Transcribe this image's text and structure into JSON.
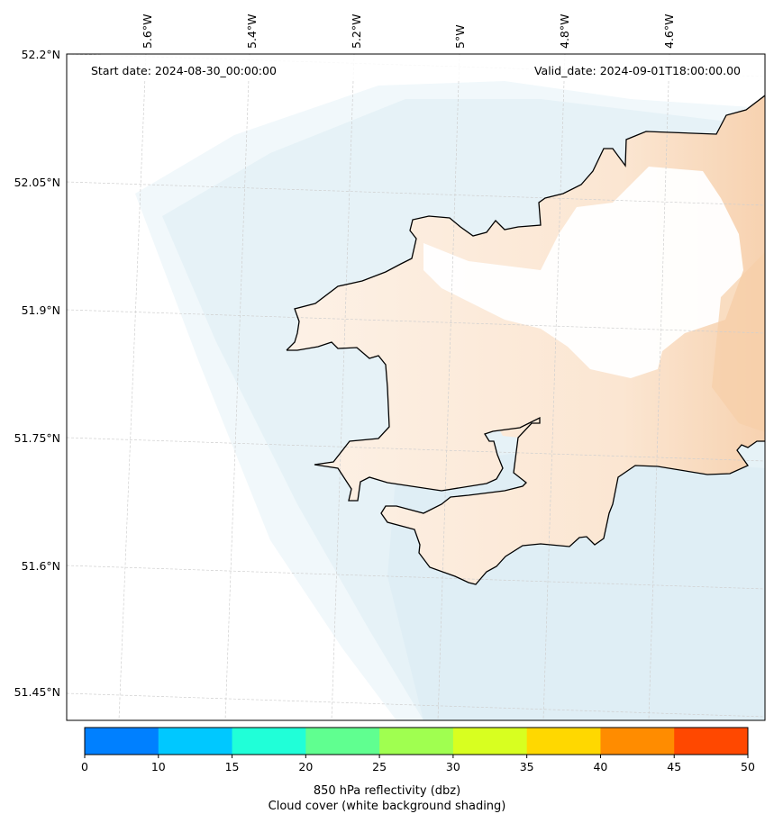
{
  "header": {
    "start_date": "Start date: 2024-08-30_00:00:00",
    "valid_date": "Valid_date: 2024-09-01T18:00:00.00"
  },
  "axes": {
    "lat_labels": [
      "52.2°N",
      "52.05°N",
      "51.9°N",
      "51.75°N",
      "51.6°N",
      "51.45°N"
    ],
    "lon_labels": [
      "5.6°W",
      "5.4°W",
      "5.2°W",
      "5°W",
      "4.8°W",
      "4.6°W"
    ]
  },
  "colorbar": {
    "ticks": [
      "0",
      "10",
      "15",
      "20",
      "25",
      "30",
      "35",
      "40",
      "45",
      "50"
    ],
    "colors": [
      "#0080ff",
      "#00c8ff",
      "#20ffd8",
      "#60ff90",
      "#a0ff50",
      "#d8ff20",
      "#ffd800",
      "#ff8c00",
      "#ff4800"
    ],
    "label_line1": "850 hPa reflectivity (dbz)",
    "label_line2": "Cloud cover (white background shading)"
  },
  "colors": {
    "sea_shading": "#e4f1f6",
    "land_shading": "#fbe3cc",
    "coastline": "#000000",
    "gridline": "#c8c8c8"
  }
}
